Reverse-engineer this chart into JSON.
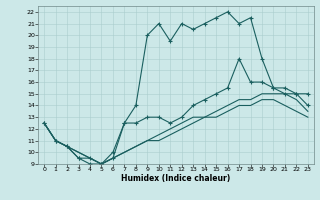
{
  "xlabel": "Humidex (Indice chaleur)",
  "bg_color": "#cce8e8",
  "grid_color": "#aacece",
  "line_color": "#1a5f5f",
  "xlim": [
    -0.5,
    23.5
  ],
  "ylim": [
    9,
    22.5
  ],
  "xticks": [
    0,
    1,
    2,
    3,
    4,
    5,
    6,
    7,
    8,
    9,
    10,
    11,
    12,
    13,
    14,
    15,
    16,
    17,
    18,
    19,
    20,
    21,
    22,
    23
  ],
  "yticks": [
    9,
    10,
    11,
    12,
    13,
    14,
    15,
    16,
    17,
    18,
    19,
    20,
    21,
    22
  ],
  "line_high_x": [
    0,
    1,
    2,
    3,
    4,
    5,
    6,
    7,
    8,
    9,
    10,
    11,
    12,
    13,
    14,
    15,
    16,
    17,
    18,
    19,
    20,
    21,
    22,
    23
  ],
  "line_high_y": [
    12.5,
    11,
    10.5,
    9.5,
    9.5,
    9,
    10,
    12.5,
    14,
    20,
    21,
    19.5,
    21,
    20.5,
    21,
    21.5,
    22,
    21,
    21.5,
    18,
    15.5,
    15.5,
    15,
    15
  ],
  "line_mid_x": [
    0,
    1,
    2,
    3,
    4,
    5,
    6,
    7,
    8,
    9,
    10,
    11,
    12,
    13,
    14,
    15,
    16,
    17,
    18,
    19,
    20,
    21,
    22,
    23
  ],
  "line_mid_y": [
    12.5,
    11,
    10.5,
    9.5,
    9,
    9,
    9.5,
    12.5,
    12.5,
    13,
    13,
    12.5,
    13,
    14,
    14.5,
    15,
    15.5,
    18,
    16,
    16,
    15.5,
    15,
    15,
    14
  ],
  "line_low1_x": [
    0,
    1,
    2,
    3,
    4,
    5,
    6,
    7,
    8,
    9,
    10,
    11,
    12,
    13,
    14,
    15,
    16,
    17,
    18,
    19,
    20,
    21,
    22,
    23
  ],
  "line_low1_y": [
    12.5,
    11,
    10.5,
    10,
    9.5,
    9,
    9.5,
    10,
    10.5,
    11,
    11.5,
    12,
    12.5,
    13,
    13,
    13.5,
    14,
    14.5,
    14.5,
    15,
    15,
    15,
    14.5,
    13.5
  ],
  "line_low2_x": [
    0,
    1,
    2,
    3,
    4,
    5,
    6,
    7,
    8,
    9,
    10,
    11,
    12,
    13,
    14,
    15,
    16,
    17,
    18,
    19,
    20,
    21,
    22,
    23
  ],
  "line_low2_y": [
    12.5,
    11,
    10.5,
    10,
    9.5,
    9,
    9.5,
    10,
    10.5,
    11,
    11,
    11.5,
    12,
    12.5,
    13,
    13,
    13.5,
    14,
    14,
    14.5,
    14.5,
    14,
    13.5,
    13
  ]
}
